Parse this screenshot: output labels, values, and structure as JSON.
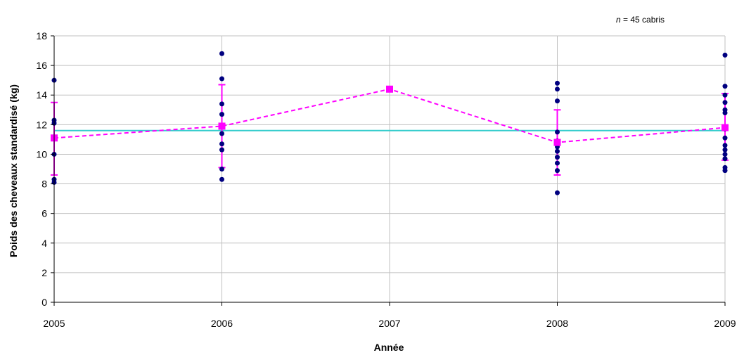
{
  "chart_data": {
    "type": "scatter",
    "xlabel": "Année",
    "ylabel": "Poids des cheveaux standardisé (kg)",
    "annotation": {
      "n_symbol": "n",
      "text": " = 45 cabris"
    },
    "xlim": [
      2005,
      2009
    ],
    "ylim": [
      0,
      18
    ],
    "x_ticks": [
      2005,
      2006,
      2007,
      2008,
      2009
    ],
    "y_ticks": [
      0,
      2,
      4,
      6,
      8,
      10,
      12,
      14,
      16,
      18
    ],
    "grid": true,
    "legend": "none",
    "series": [
      {
        "kind": "points",
        "color": "#000080",
        "points": [
          {
            "x": 2005,
            "y": 15.0
          },
          {
            "x": 2005,
            "y": 12.3
          },
          {
            "x": 2005,
            "y": 12.1
          },
          {
            "x": 2005,
            "y": 10.0
          },
          {
            "x": 2005,
            "y": 8.3
          },
          {
            "x": 2005,
            "y": 8.1
          },
          {
            "x": 2006,
            "y": 16.8
          },
          {
            "x": 2006,
            "y": 15.1
          },
          {
            "x": 2006,
            "y": 13.4
          },
          {
            "x": 2006,
            "y": 12.7
          },
          {
            "x": 2006,
            "y": 11.9
          },
          {
            "x": 2006,
            "y": 11.4
          },
          {
            "x": 2006,
            "y": 10.7
          },
          {
            "x": 2006,
            "y": 10.3
          },
          {
            "x": 2006,
            "y": 9.0
          },
          {
            "x": 2006,
            "y": 8.3
          },
          {
            "x": 2007,
            "y": 14.4
          },
          {
            "x": 2008,
            "y": 14.8
          },
          {
            "x": 2008,
            "y": 14.4
          },
          {
            "x": 2008,
            "y": 13.6
          },
          {
            "x": 2008,
            "y": 11.5
          },
          {
            "x": 2008,
            "y": 10.9
          },
          {
            "x": 2008,
            "y": 10.5
          },
          {
            "x": 2008,
            "y": 10.2
          },
          {
            "x": 2008,
            "y": 9.8
          },
          {
            "x": 2008,
            "y": 9.4
          },
          {
            "x": 2008,
            "y": 8.9
          },
          {
            "x": 2008,
            "y": 7.4
          },
          {
            "x": 2009,
            "y": 16.7
          },
          {
            "x": 2009,
            "y": 14.6
          },
          {
            "x": 2009,
            "y": 14.0
          },
          {
            "x": 2009,
            "y": 13.5
          },
          {
            "x": 2009,
            "y": 13.0
          },
          {
            "x": 2009,
            "y": 12.8
          },
          {
            "x": 2009,
            "y": 11.7
          },
          {
            "x": 2009,
            "y": 11.1
          },
          {
            "x": 2009,
            "y": 10.6
          },
          {
            "x": 2009,
            "y": 10.3
          },
          {
            "x": 2009,
            "y": 10.0
          },
          {
            "x": 2009,
            "y": 9.7
          },
          {
            "x": 2009,
            "y": 9.1
          },
          {
            "x": 2009,
            "y": 8.9
          }
        ]
      },
      {
        "kind": "mean_with_error",
        "color": "#ff00ff",
        "line_style": "dashed",
        "x": [
          2005,
          2006,
          2007,
          2008,
          2009
        ],
        "y": [
          11.1,
          11.9,
          14.4,
          10.8,
          11.8
        ],
        "err_low": [
          8.6,
          9.1,
          null,
          8.6,
          9.6
        ],
        "err_high": [
          13.5,
          14.7,
          null,
          13.0,
          14.1
        ]
      },
      {
        "kind": "hline",
        "color": "#33cccc",
        "y": 11.6
      }
    ]
  }
}
